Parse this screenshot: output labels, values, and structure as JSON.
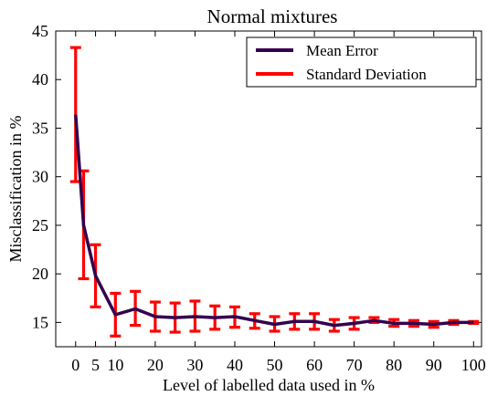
{
  "chart_data": {
    "type": "line",
    "title": "Normal mixtures",
    "xlabel": "Level of labelled data used in %",
    "ylabel": "Misclassification in %",
    "xlim": [
      -5,
      102
    ],
    "ylim": [
      12.5,
      45
    ],
    "xticks": [
      0,
      5,
      10,
      20,
      30,
      40,
      50,
      60,
      70,
      80,
      90,
      100
    ],
    "yticks": [
      15,
      20,
      25,
      30,
      35,
      40,
      45
    ],
    "grid": false,
    "legend_position": "top-right",
    "x": [
      0,
      2,
      5,
      10,
      15,
      20,
      25,
      30,
      35,
      40,
      45,
      50,
      55,
      60,
      65,
      70,
      75,
      80,
      85,
      90,
      95,
      100
    ],
    "series": [
      {
        "name": "Mean Error",
        "color": "#33004d",
        "values": [
          36.4,
          25.0,
          19.8,
          15.8,
          16.4,
          15.6,
          15.5,
          15.6,
          15.5,
          15.6,
          15.2,
          14.8,
          15.1,
          15.1,
          14.7,
          14.9,
          15.2,
          14.9,
          14.9,
          14.8,
          15.0,
          15.0
        ]
      }
    ],
    "error_bars": {
      "name": "Standard Deviation",
      "color": "#ff0000",
      "lower": [
        29.5,
        19.5,
        16.6,
        13.6,
        14.7,
        14.1,
        14.0,
        14.1,
        14.3,
        14.5,
        14.4,
        14.1,
        14.3,
        14.3,
        14.1,
        14.3,
        15.0,
        14.6,
        14.6,
        14.5,
        14.8,
        14.9
      ],
      "upper": [
        43.3,
        30.6,
        23.0,
        18.0,
        18.2,
        17.1,
        17.0,
        17.2,
        16.7,
        16.6,
        15.9,
        15.6,
        15.9,
        15.9,
        15.3,
        15.5,
        15.5,
        15.3,
        15.2,
        15.1,
        15.2,
        15.1
      ]
    }
  }
}
